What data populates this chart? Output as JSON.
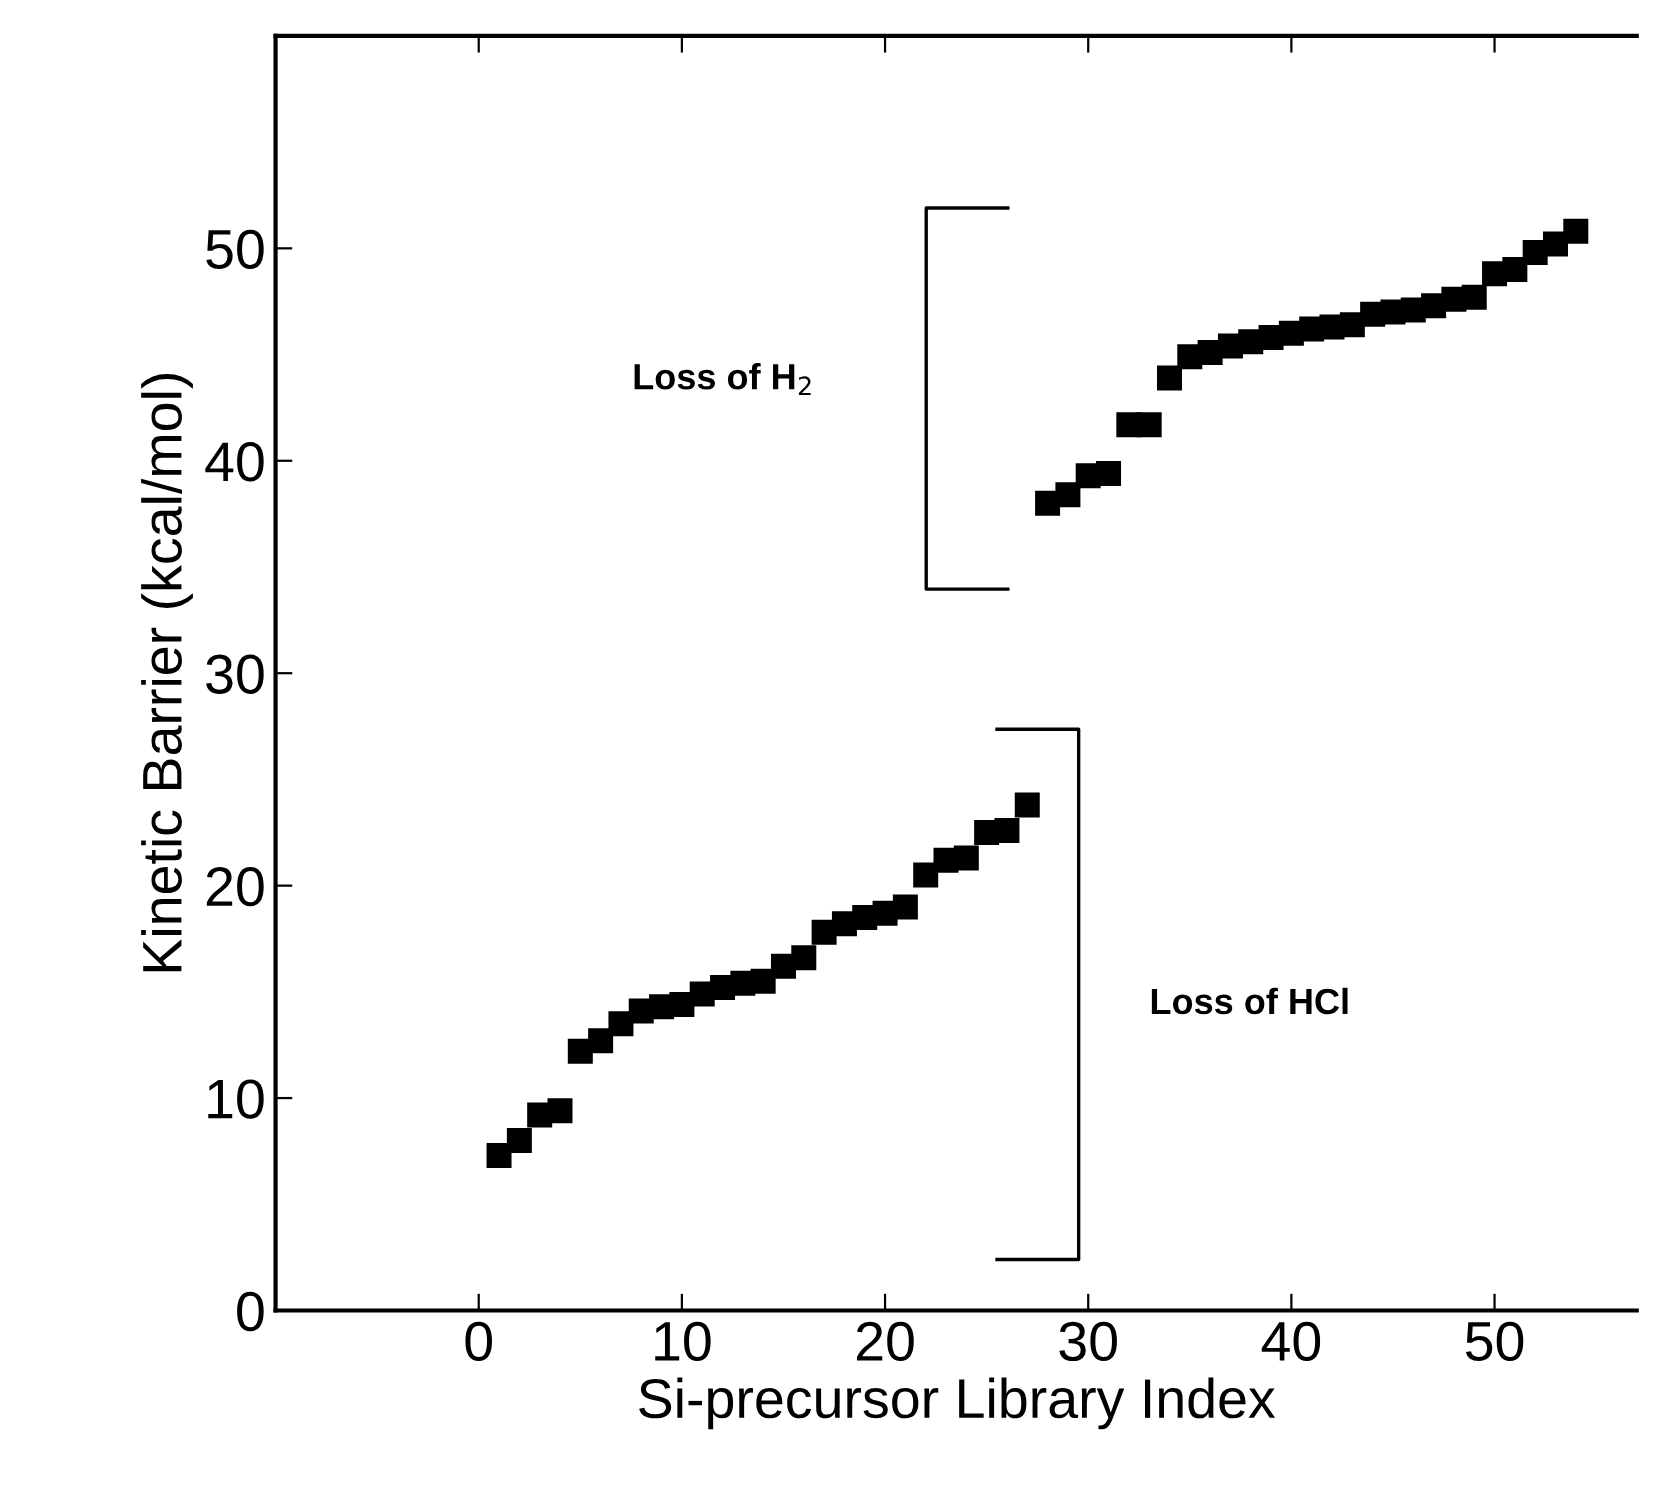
{
  "chart_data": {
    "type": "scatter",
    "xlabel": "Si-precursor Library Index",
    "ylabel": "Kinetic Barrier (kcal/mol)",
    "series": [
      {
        "color": "#000000",
        "x": [
          1,
          2,
          3,
          4,
          5,
          6,
          7,
          8,
          9,
          10,
          11,
          12,
          13,
          14,
          15,
          16,
          17,
          18,
          19,
          20,
          21,
          22,
          23,
          24,
          25,
          26,
          27
        ],
        "values": [
          7.3,
          8.0,
          9.2,
          9.4,
          12.2,
          12.7,
          13.5,
          14.1,
          14.3,
          14.4,
          14.9,
          15.2,
          15.4,
          15.5,
          16.2,
          16.6,
          17.8,
          18.2,
          18.5,
          18.7,
          19.0,
          20.5,
          21.2,
          21.3,
          22.5,
          22.6,
          23.8
        ]
      },
      {
        "color": "#000000",
        "x": [
          28,
          29,
          30,
          31,
          32,
          33,
          34,
          35,
          36,
          37,
          38,
          39,
          40,
          41,
          42,
          43,
          44,
          45,
          46,
          47,
          48,
          49,
          50,
          51,
          52,
          53,
          54
        ],
        "values": [
          38.0,
          38.4,
          39.3,
          39.4,
          41.7,
          41.7,
          43.9,
          44.9,
          45.1,
          45.4,
          45.6,
          45.8,
          46.0,
          46.2,
          46.3,
          46.4,
          46.9,
          47.0,
          47.1,
          47.3,
          47.6,
          47.7,
          48.8,
          49.0,
          49.8,
          50.2,
          50.8
        ]
      }
    ],
    "marker": "square",
    "xlim": [
      -10,
      57
    ],
    "ylim": [
      0,
      60
    ],
    "xticks": [
      0,
      10,
      20,
      30,
      40,
      50
    ],
    "yticks": [
      0,
      10,
      20,
      30,
      40,
      50
    ],
    "grid": false,
    "annotations": [
      "Loss of H$_{2}$",
      "Loss of HCl"
    ]
  }
}
